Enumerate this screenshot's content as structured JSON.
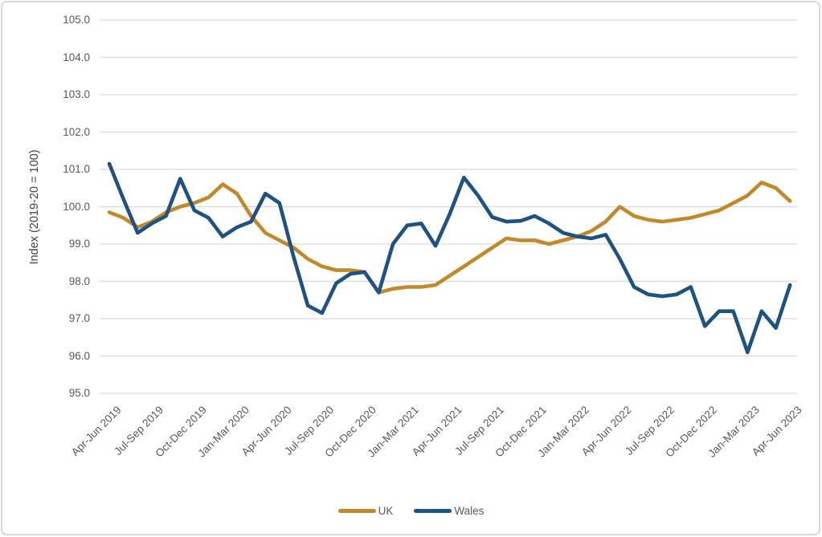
{
  "chart_data": {
    "type": "line",
    "title": "",
    "ylabel": "Index (2019-20 = 100)",
    "ylim": [
      95.0,
      105.0
    ],
    "ytick_step": 1.0,
    "ytick_labels": [
      "95.0",
      "96.0",
      "97.0",
      "98.0",
      "99.0",
      "100.0",
      "101.0",
      "102.0",
      "103.0",
      "104.0",
      "105.0"
    ],
    "x_tick_labels": [
      "Apr-Jun 2019",
      "Jul-Sep 2019",
      "Oct-Dec 2019",
      "Jan-Mar 2020",
      "Apr-Jun 2020",
      "Jul-Sep 2020",
      "Oct-Dec 2020",
      "Jan-Mar 2021",
      "Apr-Jun 2021",
      "Jul-Sep 2021",
      "Oct-Dec 2021",
      "Jan-Mar 2022",
      "Apr-Jun 2022",
      "Jul-Sep 2022",
      "Oct-Dec 2022",
      "Jan-Mar 2023",
      "Apr-Jun 2023"
    ],
    "points_per_tick_interval": 3,
    "grid": "horizontal",
    "legend_position": "bottom-center",
    "series": [
      {
        "name": "UK",
        "color": "#C08A2C",
        "values": [
          99.85,
          99.7,
          99.45,
          99.6,
          99.85,
          100.0,
          100.1,
          100.25,
          100.6,
          100.35,
          99.75,
          99.3,
          99.1,
          98.9,
          98.6,
          98.4,
          98.3,
          98.3,
          98.25,
          97.7,
          97.8,
          97.85,
          97.85,
          97.9,
          98.15,
          98.4,
          98.65,
          98.9,
          99.15,
          99.1,
          99.1,
          99.0,
          99.1,
          99.2,
          99.35,
          99.6,
          100.0,
          99.75,
          99.65,
          99.6,
          99.65,
          99.7,
          99.8,
          99.9,
          100.1,
          100.3,
          100.65,
          100.5,
          100.15
        ]
      },
      {
        "name": "Wales",
        "color": "#1E5280",
        "values": [
          101.15,
          100.2,
          99.3,
          99.55,
          99.75,
          100.75,
          99.9,
          99.7,
          99.2,
          99.45,
          99.6,
          100.35,
          100.1,
          98.65,
          97.35,
          97.15,
          97.95,
          98.2,
          98.25,
          97.7,
          99.0,
          99.5,
          99.55,
          98.95,
          99.8,
          100.78,
          100.3,
          99.72,
          99.6,
          99.62,
          99.75,
          99.55,
          99.3,
          99.2,
          99.15,
          99.25,
          98.6,
          97.85,
          97.65,
          97.6,
          97.65,
          97.85,
          96.8,
          97.2,
          97.2,
          96.1,
          97.2,
          96.75,
          97.9
        ]
      }
    ],
    "colors": {
      "background": "#FFFFFF",
      "border": "#D9D9D9",
      "gridline": "#D9D9D9",
      "tick_text": "#595959",
      "axis_title_text": "#404040"
    }
  }
}
